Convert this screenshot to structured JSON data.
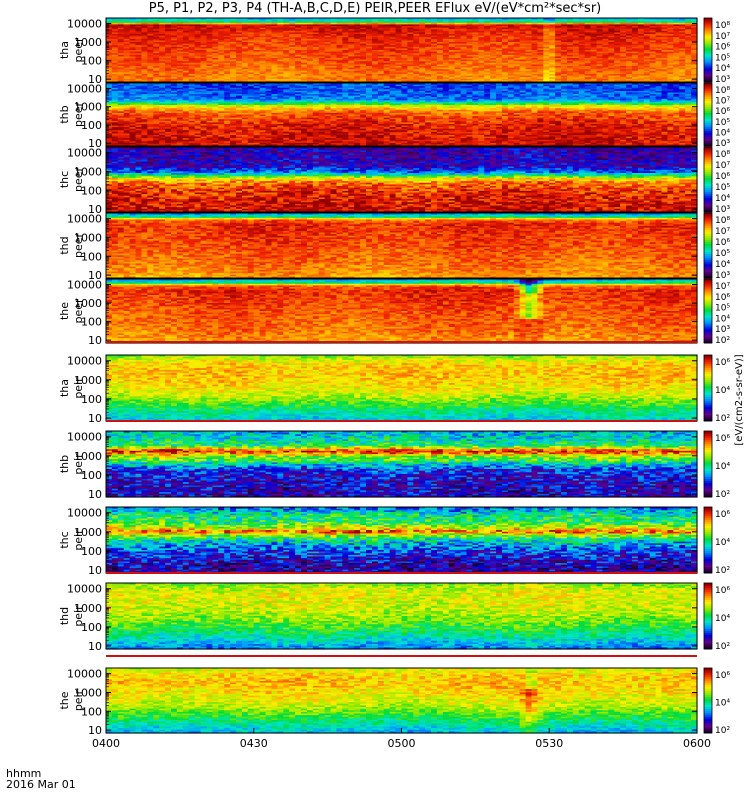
{
  "title": "P5, P1, P2, P3, P4 (TH-A,B,C,D,E) PEIR,PEER EFlux eV/(eV*cm²*sec*sr)",
  "x_axis": {
    "label_line1": "hhmm",
    "label_line2": "2016 Mar 01"
  },
  "colorbar_label": "[eV/(cm2-s-sr-eV)]",
  "chart_data": {
    "type": "heatmap",
    "title": "P5, P1, P2, P3, P4 (TH-A,B,C,D,E) PEIR,PEER EFlux eV/(eV*cm²*sec*sr)",
    "x": {
      "label": "hhmm",
      "sublabel": "2016 Mar 01",
      "tick_labels": [
        "0400",
        "0430",
        "0500",
        "0530",
        "0600"
      ],
      "range_minutes": [
        0,
        120
      ]
    },
    "y": {
      "scale": "log",
      "tick_labels": [
        "10",
        "100",
        "1000",
        "10000"
      ],
      "range": [
        7,
        20000
      ]
    },
    "colormap": "rainbow (black-purple-blue-cyan-green-yellow-orange-red)",
    "panels": [
      {
        "name": "tha peer",
        "line1": "tha",
        "line2": "peer",
        "species": "electron",
        "colorbar_ticks": [
          "10⁸",
          "10⁷",
          "10⁶",
          "10⁵",
          "10⁴",
          "10³"
        ],
        "profile": [
          [
            7,
            0.82
          ],
          [
            50,
            0.86
          ],
          [
            200,
            0.88
          ],
          [
            1000,
            0.9
          ],
          [
            4000,
            0.93
          ],
          [
            9000,
            0.96
          ],
          [
            12000,
            0.5
          ],
          [
            20000,
            0.32
          ]
        ],
        "noise": 0.05,
        "events": [
          {
            "t": 90,
            "label": "0530 narrow disturbance"
          }
        ]
      },
      {
        "name": "thb peer",
        "line1": "thb",
        "line2": "peer",
        "species": "electron",
        "colorbar_ticks": [
          "10⁸",
          "10⁷",
          "10⁶",
          "10⁵",
          "10⁴",
          "10³"
        ],
        "profile": [
          [
            7,
            0.96
          ],
          [
            100,
            0.93
          ],
          [
            500,
            0.86
          ],
          [
            1100,
            0.7
          ],
          [
            1500,
            0.5
          ],
          [
            2500,
            0.3
          ],
          [
            6000,
            0.27
          ],
          [
            20000,
            0.26
          ]
        ],
        "noise": 0.07
      },
      {
        "name": "thc peer",
        "line1": "thc",
        "line2": "peer",
        "species": "electron",
        "colorbar_ticks": [
          "10⁸",
          "10⁷",
          "10⁶",
          "10⁵",
          "10⁴",
          "10³"
        ],
        "profile": [
          [
            7,
            0.97
          ],
          [
            80,
            0.92
          ],
          [
            250,
            0.85
          ],
          [
            450,
            0.7
          ],
          [
            600,
            0.5
          ],
          [
            900,
            0.3
          ],
          [
            2000,
            0.16
          ],
          [
            20000,
            0.14
          ]
        ],
        "noise": 0.1
      },
      {
        "name": "thd peer",
        "line1": "thd",
        "line2": "peer",
        "species": "electron",
        "colorbar_ticks": [
          "10⁸",
          "10⁷",
          "10⁶",
          "10⁵",
          "10⁴",
          "10³"
        ],
        "profile": [
          [
            7,
            0.8
          ],
          [
            50,
            0.85
          ],
          [
            300,
            0.88
          ],
          [
            1500,
            0.9
          ],
          [
            5000,
            0.92
          ],
          [
            9000,
            0.85
          ],
          [
            12000,
            0.5
          ],
          [
            20000,
            0.28
          ]
        ],
        "noise": 0.06
      },
      {
        "name": "the peer",
        "line1": "the",
        "line2": "peer",
        "species": "electron",
        "colorbar_ticks": [
          "10⁷",
          "10⁶",
          "10⁵",
          "10⁴",
          "10³",
          "10²"
        ],
        "profile": [
          [
            7,
            0.8
          ],
          [
            50,
            0.85
          ],
          [
            300,
            0.87
          ],
          [
            1500,
            0.9
          ],
          [
            5000,
            0.92
          ],
          [
            9000,
            0.85
          ],
          [
            12000,
            0.5
          ],
          [
            20000,
            0.3
          ]
        ],
        "noise": 0.06,
        "events": [
          {
            "t": 86,
            "label": "0526 funnel dip"
          }
        ]
      },
      {
        "name": "tha peir",
        "line1": "tha",
        "line2": "peir",
        "species": "ion",
        "colorbar_ticks": [
          "10⁶",
          "10⁴",
          "10²"
        ],
        "profile": [
          [
            7,
            0.38
          ],
          [
            20,
            0.45
          ],
          [
            50,
            0.55
          ],
          [
            150,
            0.66
          ],
          [
            500,
            0.73
          ],
          [
            2000,
            0.77
          ],
          [
            6000,
            0.75
          ],
          [
            12000,
            0.67
          ],
          [
            20000,
            0.6
          ]
        ],
        "noise": 0.08
      },
      {
        "name": "thb peir",
        "line1": "thb",
        "line2": "peir",
        "species": "ion",
        "colorbar_ticks": [
          "10⁶",
          "10⁴",
          "10²"
        ],
        "profile": [
          [
            7,
            0.15
          ],
          [
            50,
            0.17
          ],
          [
            200,
            0.24
          ],
          [
            400,
            0.42
          ],
          [
            600,
            0.56
          ],
          [
            800,
            0.58
          ],
          [
            1200,
            0.75
          ],
          [
            1600,
            0.93
          ],
          [
            2200,
            0.82
          ],
          [
            3500,
            0.5
          ],
          [
            8000,
            0.42
          ],
          [
            20000,
            0.36
          ]
        ],
        "noise": 0.14
      },
      {
        "name": "thc peir",
        "line1": "thc",
        "line2": "peir",
        "species": "ion",
        "colorbar_ticks": [
          "10⁶",
          "10⁴",
          "10²"
        ],
        "profile": [
          [
            7,
            0.12
          ],
          [
            30,
            0.16
          ],
          [
            100,
            0.25
          ],
          [
            400,
            0.45
          ],
          [
            700,
            0.65
          ],
          [
            1000,
            0.9
          ],
          [
            1400,
            0.72
          ],
          [
            3000,
            0.52
          ],
          [
            8000,
            0.46
          ],
          [
            20000,
            0.28
          ]
        ],
        "noise": 0.15
      },
      {
        "name": "thd peir",
        "line1": "thd",
        "line2": "peir",
        "species": "ion",
        "colorbar_ticks": [
          "10⁶",
          "10⁴",
          "10²"
        ],
        "profile": [
          [
            7,
            0.3
          ],
          [
            20,
            0.4
          ],
          [
            60,
            0.5
          ],
          [
            200,
            0.6
          ],
          [
            800,
            0.67
          ],
          [
            3000,
            0.7
          ],
          [
            8000,
            0.68
          ],
          [
            20000,
            0.6
          ]
        ],
        "noise": 0.09
      },
      {
        "name": "the peir",
        "line1": "the",
        "line2": "peir",
        "species": "ion",
        "colorbar_ticks": [
          "10⁶",
          "10⁴",
          "10²"
        ],
        "profile": [
          [
            7,
            0.35
          ],
          [
            20,
            0.45
          ],
          [
            60,
            0.55
          ],
          [
            200,
            0.66
          ],
          [
            800,
            0.72
          ],
          [
            3000,
            0.77
          ],
          [
            8000,
            0.75
          ],
          [
            20000,
            0.68
          ]
        ],
        "noise": 0.08,
        "events": [
          {
            "t": 86,
            "label": "0526 warm spot"
          }
        ]
      }
    ]
  }
}
